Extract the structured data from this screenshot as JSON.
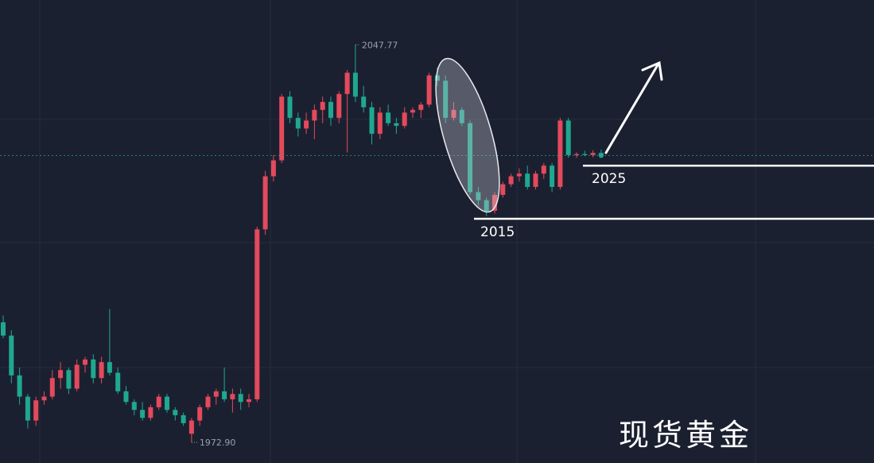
{
  "chart_data": {
    "type": "candlestick",
    "watermark": "现货黄金",
    "ylim": [
      1969.0,
      2056.2
    ],
    "up_color": "#e34a5c",
    "down_color": "#1fa88f",
    "last_price_line": true,
    "high_label": 2047.77,
    "low_label": {
      "value": 1972.9,
      "label": "1972.90"
    },
    "levels": [
      2025,
      2015
    ],
    "open": [
      1995.5,
      1993.0,
      1985.5,
      1981.5,
      1977,
      1980.8,
      1981.5,
      1985,
      1986.5,
      1983,
      1987.5,
      1988.5,
      1985,
      1988,
      1986,
      1982.5,
      1980.5,
      1979,
      1977.5,
      1979.5,
      1981.5,
      1979,
      1978,
      1974.5,
      1977,
      1979.5,
      1981.5,
      1982.5,
      1981,
      1982,
      1980.5,
      1981,
      2013,
      2023,
      2026,
      2038,
      2034,
      2032,
      2033.5,
      2035.5,
      2037,
      2034,
      2038.5,
      2042.5,
      2038,
      2036,
      2031,
      2035,
      2033,
      2032.5,
      2035,
      2035.5,
      2036.5,
      2042,
      2041,
      2034,
      2035.5,
      2033,
      2020,
      2018.5,
      2016.5,
      2019.5,
      2021.5,
      2023,
      2023.5,
      2021,
      2023.5,
      2025,
      2021,
      2033.5,
      2027,
      2027.2,
      2027.0,
      2027.4
    ],
    "high": [
      1996.8,
      1994,
      1987,
      1982,
      1981.5,
      1982.5,
      1986.5,
      1988,
      1987,
      1988.5,
      1989,
      1989.5,
      1989,
      1998,
      1987,
      1983.5,
      1981,
      1980.5,
      1980,
      1982,
      1982,
      1979.5,
      1978.5,
      1977.5,
      1980,
      1982,
      1983,
      1987,
      1983,
      1983,
      1982,
      2013.5,
      2024,
      2027,
      2038.5,
      2039,
      2035,
      2035,
      2036.5,
      2038,
      2038,
      2039,
      2043,
      2047.77,
      2040,
      2037,
      2036,
      2036.5,
      2034,
      2036,
      2036,
      2037,
      2042.5,
      2043.5,
      2042,
      2037,
      2036,
      2033.5,
      2021,
      2019,
      2020,
      2022,
      2023.5,
      2024.5,
      2025,
      2024,
      2025.5,
      2025.5,
      2034,
      2034,
      2027.5,
      2027.8,
      2027.9,
      2028
    ],
    "low": [
      1992.5,
      1984,
      1980,
      1975.5,
      1976,
      1980,
      1981,
      1983,
      1982,
      1982.5,
      1986,
      1984,
      1984,
      1985.5,
      1982,
      1980,
      1978,
      1977,
      1977,
      1979,
      1978.5,
      1977,
      1976,
      1972.9,
      1976,
      1979,
      1980,
      1980.5,
      1978.5,
      1979,
      1979.5,
      1980.5,
      2012,
      2022,
      2025.5,
      2033,
      2030.5,
      2031,
      2030,
      2033,
      2032.5,
      2033,
      2027.5,
      2037,
      2035,
      2029,
      2030,
      2032.5,
      2031,
      2032,
      2034,
      2034,
      2036,
      2040,
      2033,
      2033.5,
      2032.5,
      2019.5,
      2017.5,
      2015.5,
      2016,
      2019,
      2021,
      2022,
      2020.5,
      2020.5,
      2022.5,
      2020,
      2020.5,
      2026.5,
      2026.5,
      2026.8,
      2026.6,
      2026.7
    ],
    "close": [
      1993.0,
      1985.5,
      1981.5,
      1977,
      1980.8,
      1981.5,
      1985,
      1986.5,
      1983,
      1987.5,
      1988.5,
      1985,
      1988,
      1986,
      1982.5,
      1980.5,
      1979,
      1977.5,
      1979.5,
      1981.5,
      1979,
      1978,
      1976.5,
      1977,
      1979.5,
      1981.5,
      1982.5,
      1981,
      1982,
      1980.5,
      1981,
      2013,
      2023,
      2026,
      2038,
      2034,
      2032,
      2033.5,
      2035.5,
      2037,
      2034,
      2038.5,
      2042.5,
      2038,
      2036,
      2031,
      2035,
      2033,
      2032.5,
      2035,
      2035.5,
      2036.5,
      2042,
      2041,
      2034,
      2035.5,
      2033,
      2020,
      2018.5,
      2016.5,
      2019.5,
      2021.5,
      2023,
      2023.5,
      2021,
      2023.5,
      2025,
      2021,
      2033.5,
      2027,
      2027.2,
      2027.0,
      2027.4,
      2026.9
    ]
  }
}
